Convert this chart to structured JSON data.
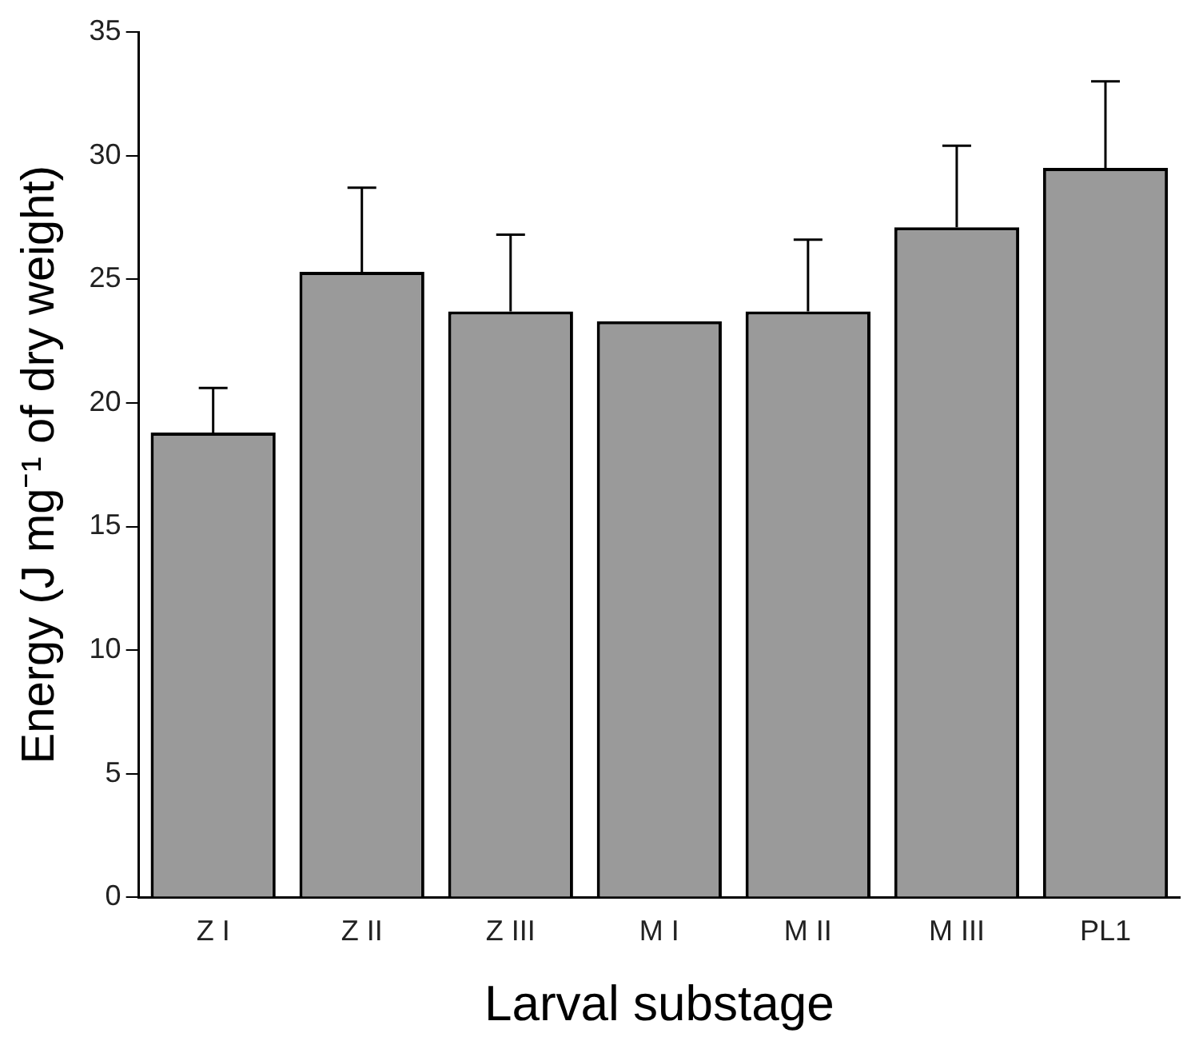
{
  "chart_data": {
    "type": "bar",
    "xlabel": "Larval substage",
    "ylabel": "Energy (J mg⁻¹ of dry weight)",
    "categories": [
      "Z I",
      "Z II",
      "Z III",
      "M I",
      "M II",
      "M III",
      "PL1"
    ],
    "values": [
      18.8,
      25.3,
      23.7,
      23.3,
      23.7,
      27.1,
      29.5
    ],
    "errors": [
      [
        18.8,
        20.6
      ],
      [
        25.3,
        28.7
      ],
      [
        23.7,
        26.8
      ],
      null,
      [
        23.7,
        26.6
      ],
      [
        27.1,
        30.4
      ],
      [
        29.5,
        33.0
      ]
    ],
    "color": "#9a9a9a",
    "ylim": [
      0,
      35
    ],
    "yticks": [
      0,
      5,
      10,
      15,
      20,
      25,
      30,
      35
    ],
    "grid": false,
    "legend": false
  }
}
